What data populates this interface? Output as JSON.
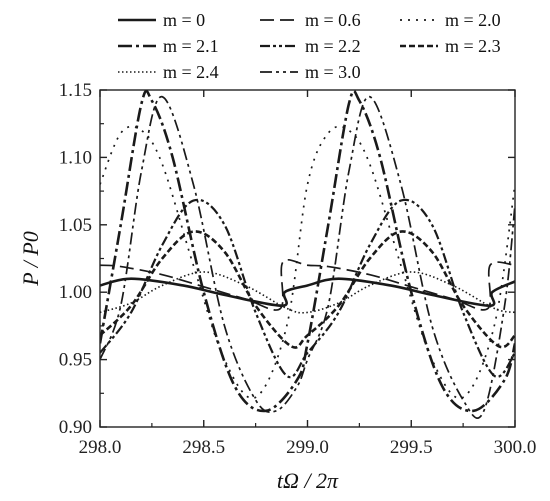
{
  "chart_data": {
    "type": "line",
    "title": "",
    "xlabel": "tΩ / 2π",
    "ylabel": "P / P0",
    "xlim": [
      298.0,
      300.0
    ],
    "ylim": [
      0.9,
      1.15
    ],
    "xticks": [
      298.0,
      298.5,
      299.0,
      299.5,
      300.0
    ],
    "xtick_labels": [
      "298.0",
      "298.5",
      "299.0",
      "299.5",
      "300.0"
    ],
    "yticks": [
      0.9,
      0.95,
      1.0,
      1.05,
      1.1,
      1.15
    ],
    "ytick_labels": [
      "0.90",
      "0.95",
      "1.00",
      "1.05",
      "1.10",
      "1.15"
    ],
    "grid": false,
    "legend_position": "top",
    "series": [
      {
        "name": "m = 0",
        "x": [
          298.0,
          298.15,
          298.4,
          298.6,
          298.88,
          298.89,
          299.0,
          299.15,
          299.4,
          299.6,
          299.88,
          299.89,
          300.0
        ],
        "y": [
          1.005,
          1.01,
          1.005,
          0.998,
          0.99,
          1.0,
          1.005,
          1.01,
          1.005,
          0.998,
          0.99,
          1.0,
          1.008
        ]
      },
      {
        "name": "m = 0.6",
        "x": [
          298.0,
          298.1,
          298.3,
          298.5,
          298.7,
          298.87,
          298.88,
          299.0,
          299.1,
          299.3,
          299.5,
          299.7,
          299.87,
          299.88,
          300.0
        ],
        "y": [
          1.02,
          1.019,
          1.013,
          1.004,
          0.995,
          0.988,
          1.022,
          1.02,
          1.019,
          1.013,
          1.004,
          0.995,
          0.988,
          1.02,
          1.02
        ]
      },
      {
        "name": "m = 2.0",
        "x": [
          298.0,
          298.1,
          298.2,
          298.3,
          298.45,
          298.6,
          298.75,
          298.9,
          299.0,
          299.1,
          299.2,
          299.3,
          299.45,
          299.6,
          299.75,
          299.9,
          300.0
        ],
        "y": [
          1.08,
          1.118,
          1.12,
          1.095,
          1.02,
          0.95,
          0.922,
          0.975,
          1.08,
          1.118,
          1.12,
          1.095,
          1.02,
          0.95,
          0.922,
          0.975,
          1.08
        ]
      },
      {
        "name": "m = 2.1",
        "x": [
          298.0,
          298.1,
          298.2,
          298.25,
          298.35,
          298.5,
          298.65,
          298.8,
          298.95,
          299.0,
          299.1,
          299.2,
          299.25,
          299.35,
          299.5,
          299.65,
          299.8,
          299.95,
          300.0
        ],
        "y": [
          0.962,
          1.05,
          1.14,
          1.142,
          1.1,
          1.0,
          0.93,
          0.912,
          0.935,
          0.962,
          1.05,
          1.14,
          1.142,
          1.1,
          1.0,
          0.93,
          0.912,
          0.935,
          0.962
        ]
      },
      {
        "name": "m = 2.2",
        "x": [
          298.0,
          298.15,
          298.3,
          298.45,
          298.6,
          298.75,
          298.9,
          299.0,
          299.15,
          299.3,
          299.45,
          299.6,
          299.75,
          299.9,
          300.0
        ],
        "y": [
          0.955,
          0.985,
          1.035,
          1.068,
          1.05,
          0.985,
          0.938,
          0.955,
          0.985,
          1.035,
          1.068,
          1.05,
          0.985,
          0.938,
          0.955
        ]
      },
      {
        "name": "m = 2.3",
        "x": [
          298.0,
          298.15,
          298.3,
          298.45,
          298.6,
          298.75,
          298.92,
          299.0,
          299.15,
          299.3,
          299.45,
          299.6,
          299.75,
          299.92,
          300.0
        ],
        "y": [
          0.968,
          0.99,
          1.025,
          1.045,
          1.03,
          0.99,
          0.96,
          0.968,
          0.99,
          1.025,
          1.045,
          1.03,
          0.99,
          0.96,
          0.968
        ]
      },
      {
        "name": "m = 2.4",
        "x": [
          298.0,
          298.15,
          298.3,
          298.5,
          298.7,
          298.9,
          299.0,
          299.15,
          299.3,
          299.5,
          299.7,
          299.9,
          300.0
        ],
        "y": [
          0.985,
          0.992,
          1.005,
          1.015,
          1.005,
          0.988,
          0.985,
          0.992,
          1.005,
          1.015,
          1.005,
          0.988,
          0.985
        ]
      },
      {
        "name": "m = 3.0",
        "x": [
          298.0,
          298.1,
          298.2,
          298.3,
          298.45,
          298.6,
          298.75,
          298.85,
          298.95,
          299.0,
          299.1,
          299.2,
          299.3,
          299.45,
          299.6,
          299.75,
          299.85,
          299.95,
          300.0
        ],
        "y": [
          0.95,
          0.99,
          1.09,
          1.145,
          1.08,
          0.975,
          0.92,
          0.912,
          0.93,
          0.95,
          0.99,
          1.09,
          1.145,
          1.08,
          0.975,
          0.92,
          0.912,
          0.99,
          1.065
        ]
      }
    ]
  },
  "styles": {
    "line_color": "#1a1a1a",
    "axis_color": "#222222"
  }
}
